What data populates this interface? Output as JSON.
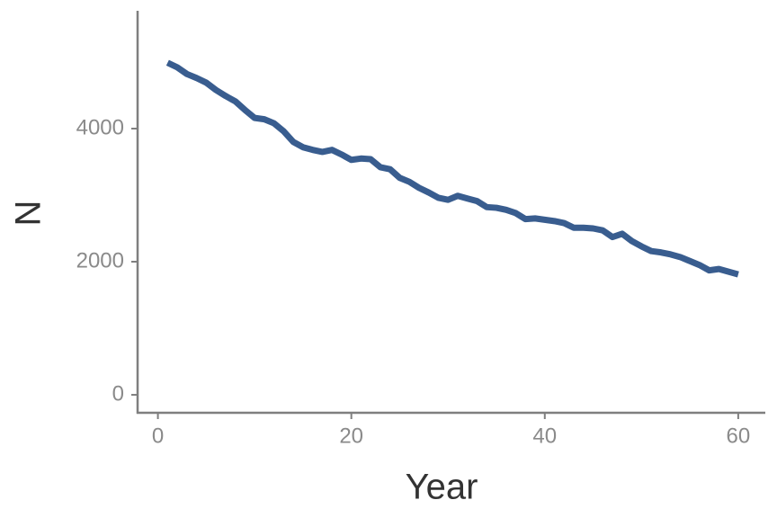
{
  "chart_data": {
    "type": "line",
    "x_label": "Year",
    "y_label": "N",
    "color": "#395d8f",
    "x": [
      1,
      2,
      3,
      4,
      5,
      6,
      7,
      8,
      9,
      10,
      11,
      12,
      13,
      14,
      15,
      16,
      17,
      18,
      19,
      20,
      21,
      22,
      23,
      24,
      25,
      26,
      27,
      28,
      29,
      30,
      31,
      32,
      33,
      34,
      35,
      36,
      37,
      38,
      39,
      40,
      41,
      42,
      43,
      44,
      45,
      46,
      47,
      48,
      49,
      50,
      51,
      52,
      53,
      54,
      55,
      56,
      57,
      58,
      59,
      60
    ],
    "values": [
      4990,
      4920,
      4820,
      4760,
      4690,
      4580,
      4490,
      4410,
      4280,
      4160,
      4140,
      4080,
      3960,
      3800,
      3720,
      3680,
      3650,
      3680,
      3610,
      3530,
      3550,
      3540,
      3420,
      3390,
      3260,
      3200,
      3110,
      3040,
      2960,
      2930,
      2990,
      2950,
      2910,
      2820,
      2810,
      2780,
      2730,
      2640,
      2650,
      2630,
      2610,
      2580,
      2510,
      2510,
      2500,
      2470,
      2370,
      2420,
      2310,
      2230,
      2160,
      2140,
      2110,
      2070,
      2010,
      1950,
      1870,
      1890,
      1850,
      1810
    ],
    "xlim": [
      -2.1,
      62.8
    ],
    "ylim": [
      -270,
      5770
    ],
    "xticks": [
      0,
      20,
      40,
      60
    ],
    "yticks": [
      0,
      2000,
      4000
    ]
  }
}
